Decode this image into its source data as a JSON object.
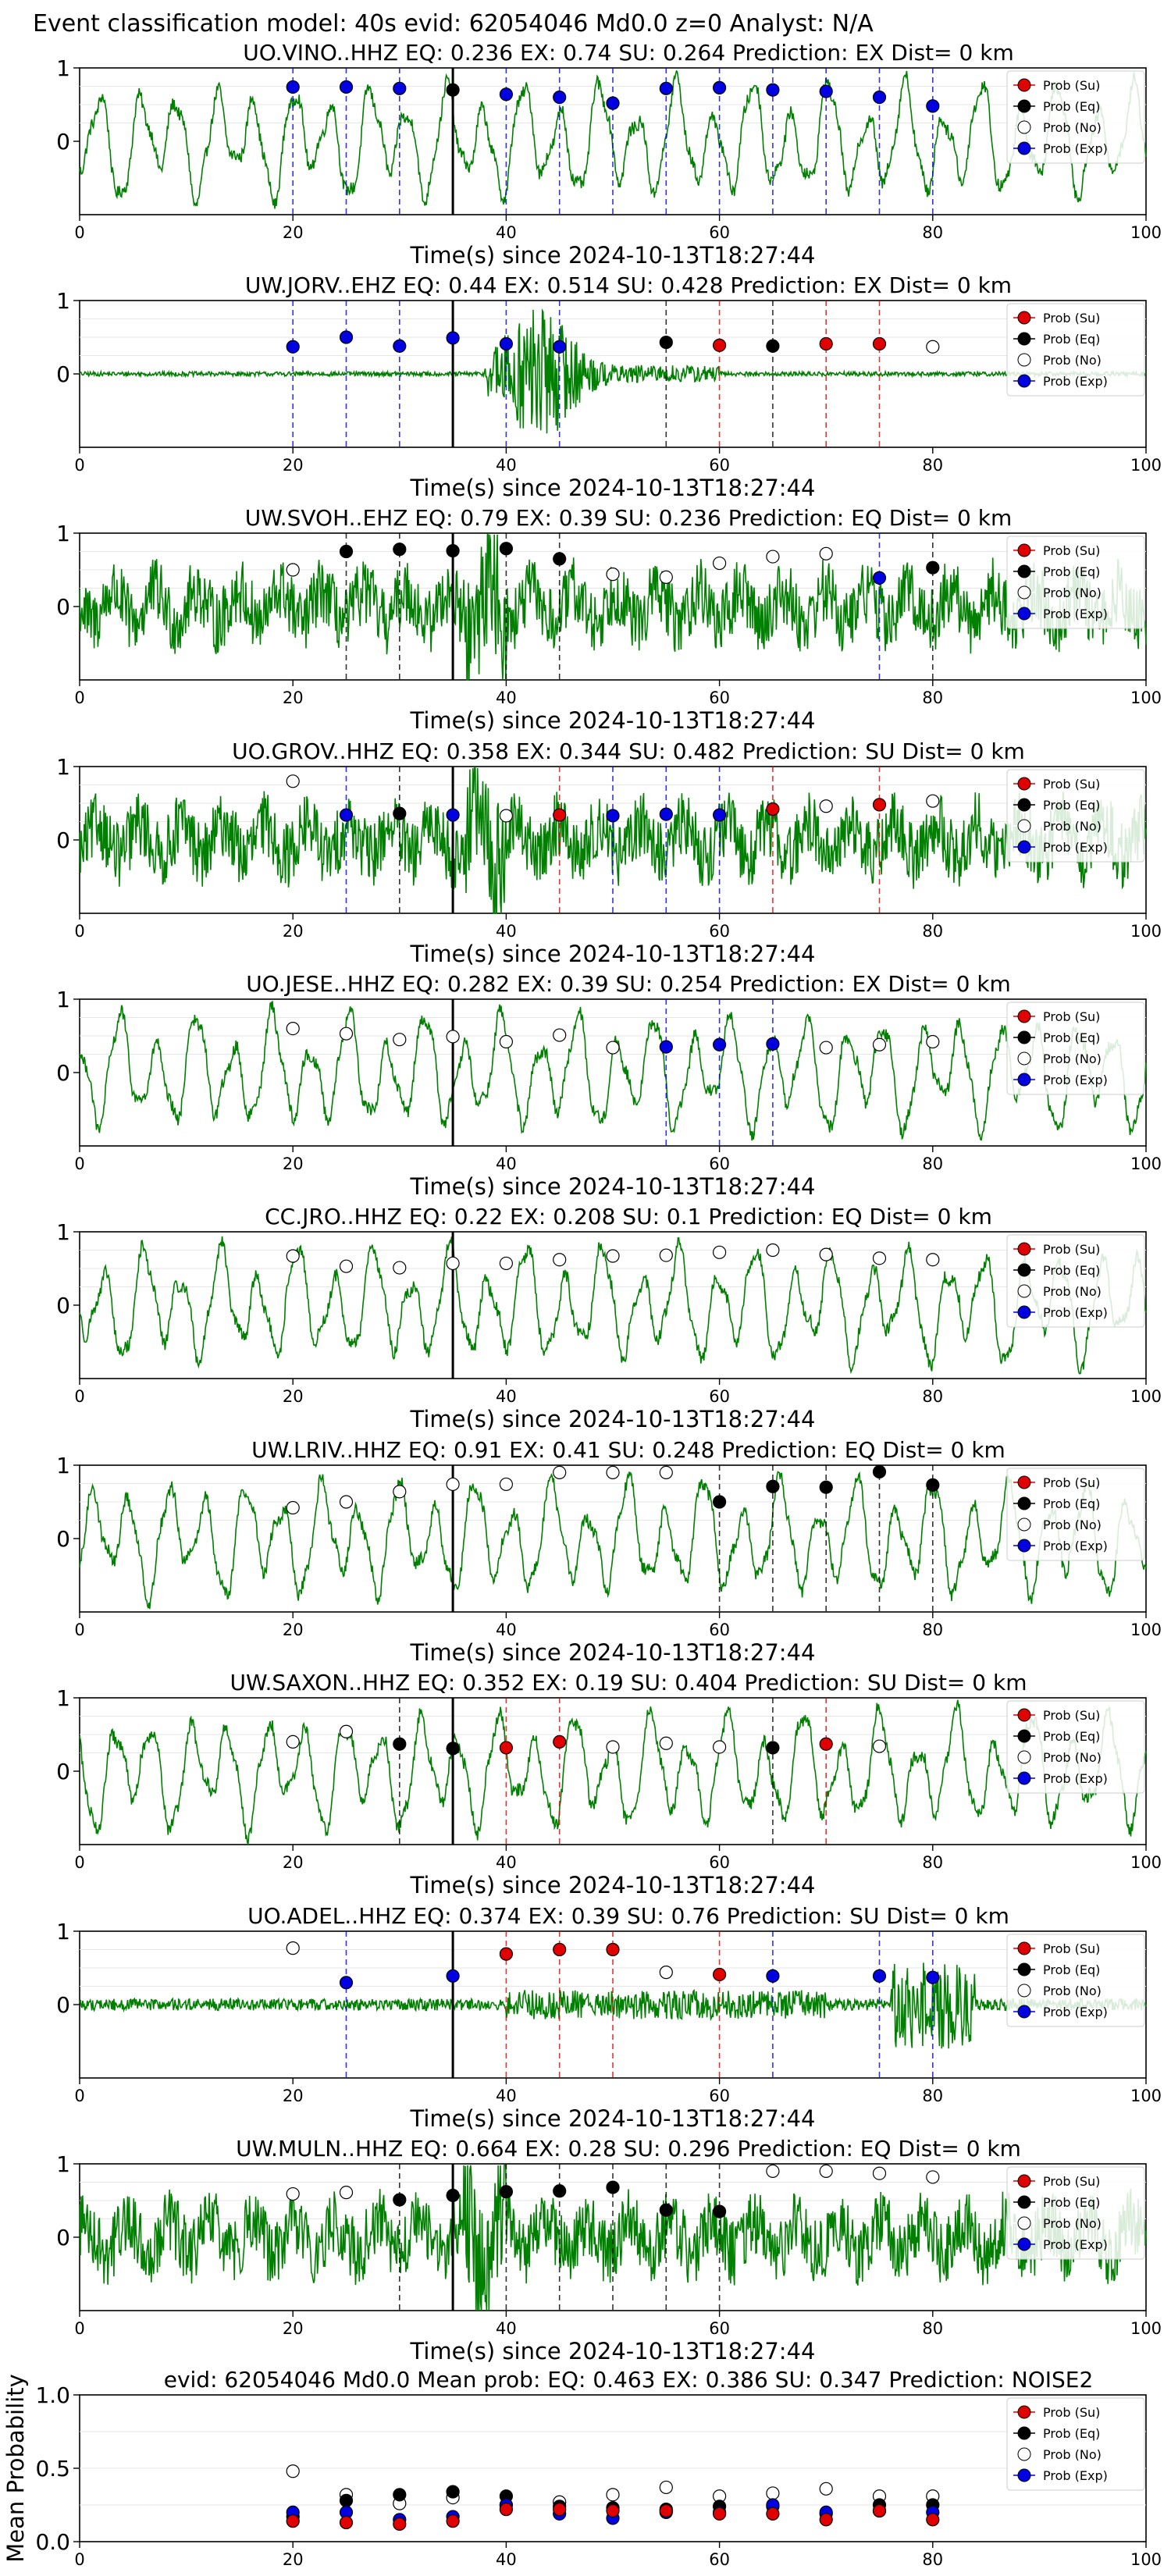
{
  "figure": {
    "suptitle": "Event classification model: 40s evid: 62054046 Md0.0 z=0 Analyst: N/A"
  },
  "legend_labels": [
    "Prob (Su)",
    "Prob (Eq)",
    "Prob (No)",
    "Prob (Exp)"
  ],
  "colors": {
    "su": "#e00000",
    "eq": "#000000",
    "no": "#ffffff",
    "exp": "#0000e0",
    "waveform": "#008000"
  },
  "chart_data": [
    {
      "type": "line",
      "title": "UO.VINO..HHZ   EQ: 0.236  EX: 0.74  SU: 0.264   Prediction: EX    Dist= 0 km",
      "xlabel": "Time(s) since 2024-10-13T18:27:44",
      "xlim": [
        0,
        100
      ],
      "ylim": [
        -1,
        1
      ],
      "xticks": [
        "0",
        "20",
        "40",
        "60",
        "80",
        "100"
      ],
      "yticks": [
        "1",
        "0"
      ],
      "onset": 35,
      "waveform": "smooth",
      "points": [
        {
          "t": 20,
          "p": 0.74,
          "cls": "exp"
        },
        {
          "t": 25,
          "p": 0.74,
          "cls": "exp"
        },
        {
          "t": 30,
          "p": 0.72,
          "cls": "exp"
        },
        {
          "t": 35,
          "p": 0.7,
          "cls": "eq"
        },
        {
          "t": 40,
          "p": 0.64,
          "cls": "exp"
        },
        {
          "t": 45,
          "p": 0.6,
          "cls": "exp"
        },
        {
          "t": 50,
          "p": 0.52,
          "cls": "exp"
        },
        {
          "t": 55,
          "p": 0.72,
          "cls": "exp"
        },
        {
          "t": 60,
          "p": 0.73,
          "cls": "exp"
        },
        {
          "t": 65,
          "p": 0.7,
          "cls": "exp"
        },
        {
          "t": 70,
          "p": 0.68,
          "cls": "exp"
        },
        {
          "t": 75,
          "p": 0.6,
          "cls": "exp"
        },
        {
          "t": 80,
          "p": 0.48,
          "cls": "exp"
        }
      ]
    },
    {
      "type": "line",
      "title": "UW.JORV..EHZ   EQ: 0.44  EX: 0.514  SU: 0.428   Prediction: EX    Dist= 0 km",
      "xlabel": "Time(s) since 2024-10-13T18:27:44",
      "xlim": [
        0,
        100
      ],
      "ylim": [
        -1,
        1
      ],
      "xticks": [
        "0",
        "20",
        "40",
        "60",
        "80",
        "100"
      ],
      "yticks": [
        "1",
        "0"
      ],
      "onset": 35,
      "waveform": "burst",
      "points": [
        {
          "t": 20,
          "p": 0.37,
          "cls": "exp"
        },
        {
          "t": 25,
          "p": 0.5,
          "cls": "exp"
        },
        {
          "t": 30,
          "p": 0.38,
          "cls": "exp"
        },
        {
          "t": 35,
          "p": 0.49,
          "cls": "exp"
        },
        {
          "t": 40,
          "p": 0.41,
          "cls": "exp"
        },
        {
          "t": 45,
          "p": 0.37,
          "cls": "exp"
        },
        {
          "t": 55,
          "p": 0.43,
          "cls": "eq"
        },
        {
          "t": 60,
          "p": 0.39,
          "cls": "su"
        },
        {
          "t": 65,
          "p": 0.38,
          "cls": "eq"
        },
        {
          "t": 70,
          "p": 0.41,
          "cls": "su"
        },
        {
          "t": 75,
          "p": 0.41,
          "cls": "su"
        },
        {
          "t": 80,
          "p": 0.37,
          "cls": "no"
        }
      ]
    },
    {
      "type": "line",
      "title": "UW.SVOH..EHZ   EQ: 0.79  EX: 0.39  SU: 0.236   Prediction: EQ    Dist= 0 km",
      "xlabel": "Time(s) since 2024-10-13T18:27:44",
      "xlim": [
        0,
        100
      ],
      "ylim": [
        -1,
        1
      ],
      "xticks": [
        "0",
        "20",
        "40",
        "60",
        "80",
        "100"
      ],
      "yticks": [
        "1",
        "0"
      ],
      "onset": 35,
      "waveform": "noisy",
      "points": [
        {
          "t": 20,
          "p": 0.5,
          "cls": "no"
        },
        {
          "t": 25,
          "p": 0.75,
          "cls": "eq"
        },
        {
          "t": 30,
          "p": 0.78,
          "cls": "eq"
        },
        {
          "t": 35,
          "p": 0.76,
          "cls": "eq"
        },
        {
          "t": 40,
          "p": 0.79,
          "cls": "eq"
        },
        {
          "t": 45,
          "p": 0.65,
          "cls": "eq"
        },
        {
          "t": 50,
          "p": 0.44,
          "cls": "no"
        },
        {
          "t": 55,
          "p": 0.4,
          "cls": "no"
        },
        {
          "t": 60,
          "p": 0.59,
          "cls": "no"
        },
        {
          "t": 65,
          "p": 0.68,
          "cls": "no"
        },
        {
          "t": 70,
          "p": 0.72,
          "cls": "no"
        },
        {
          "t": 75,
          "p": 0.39,
          "cls": "exp"
        },
        {
          "t": 80,
          "p": 0.53,
          "cls": "eq"
        }
      ]
    },
    {
      "type": "line",
      "title": "UO.GROV..HHZ   EQ: 0.358  EX: 0.344  SU: 0.482   Prediction: SU    Dist= 0 km",
      "xlabel": "Time(s) since 2024-10-13T18:27:44",
      "xlim": [
        0,
        100
      ],
      "ylim": [
        -1,
        1
      ],
      "xticks": [
        "0",
        "20",
        "40",
        "60",
        "80",
        "100"
      ],
      "yticks": [
        "1",
        "0"
      ],
      "onset": 35,
      "waveform": "noisy",
      "points": [
        {
          "t": 20,
          "p": 0.8,
          "cls": "no"
        },
        {
          "t": 25,
          "p": 0.34,
          "cls": "exp"
        },
        {
          "t": 30,
          "p": 0.36,
          "cls": "eq"
        },
        {
          "t": 35,
          "p": 0.34,
          "cls": "exp"
        },
        {
          "t": 40,
          "p": 0.33,
          "cls": "no"
        },
        {
          "t": 45,
          "p": 0.34,
          "cls": "su"
        },
        {
          "t": 50,
          "p": 0.33,
          "cls": "exp"
        },
        {
          "t": 55,
          "p": 0.35,
          "cls": "exp"
        },
        {
          "t": 60,
          "p": 0.34,
          "cls": "exp"
        },
        {
          "t": 65,
          "p": 0.42,
          "cls": "su"
        },
        {
          "t": 70,
          "p": 0.46,
          "cls": "no"
        },
        {
          "t": 75,
          "p": 0.48,
          "cls": "su"
        },
        {
          "t": 80,
          "p": 0.53,
          "cls": "no"
        }
      ]
    },
    {
      "type": "line",
      "title": "UO.JESE..HHZ   EQ: 0.282  EX: 0.39  SU: 0.254   Prediction: EX    Dist= 0 km",
      "xlabel": "Time(s) since 2024-10-13T18:27:44",
      "xlim": [
        0,
        100
      ],
      "ylim": [
        -1,
        1
      ],
      "xticks": [
        "0",
        "20",
        "40",
        "60",
        "80",
        "100"
      ],
      "yticks": [
        "1",
        "0"
      ],
      "onset": 35,
      "waveform": "smooth",
      "points": [
        {
          "t": 20,
          "p": 0.6,
          "cls": "no"
        },
        {
          "t": 25,
          "p": 0.53,
          "cls": "no"
        },
        {
          "t": 30,
          "p": 0.45,
          "cls": "no"
        },
        {
          "t": 35,
          "p": 0.49,
          "cls": "no"
        },
        {
          "t": 40,
          "p": 0.42,
          "cls": "no"
        },
        {
          "t": 45,
          "p": 0.51,
          "cls": "no"
        },
        {
          "t": 50,
          "p": 0.34,
          "cls": "no"
        },
        {
          "t": 55,
          "p": 0.35,
          "cls": "exp"
        },
        {
          "t": 60,
          "p": 0.38,
          "cls": "exp"
        },
        {
          "t": 65,
          "p": 0.39,
          "cls": "exp"
        },
        {
          "t": 70,
          "p": 0.34,
          "cls": "no"
        },
        {
          "t": 75,
          "p": 0.38,
          "cls": "no"
        },
        {
          "t": 80,
          "p": 0.42,
          "cls": "no"
        }
      ]
    },
    {
      "type": "line",
      "title": "CC.JRO..HHZ   EQ: 0.22  EX: 0.208  SU: 0.1   Prediction: EQ    Dist= 0 km",
      "xlabel": "Time(s) since 2024-10-13T18:27:44",
      "xlim": [
        0,
        100
      ],
      "ylim": [
        -1,
        1
      ],
      "xticks": [
        "0",
        "20",
        "40",
        "60",
        "80",
        "100"
      ],
      "yticks": [
        "1",
        "0"
      ],
      "onset": 35,
      "waveform": "smooth",
      "points": [
        {
          "t": 20,
          "p": 0.67,
          "cls": "no"
        },
        {
          "t": 25,
          "p": 0.53,
          "cls": "no"
        },
        {
          "t": 30,
          "p": 0.51,
          "cls": "no"
        },
        {
          "t": 35,
          "p": 0.57,
          "cls": "no"
        },
        {
          "t": 40,
          "p": 0.57,
          "cls": "no"
        },
        {
          "t": 45,
          "p": 0.62,
          "cls": "no"
        },
        {
          "t": 50,
          "p": 0.67,
          "cls": "no"
        },
        {
          "t": 55,
          "p": 0.68,
          "cls": "no"
        },
        {
          "t": 60,
          "p": 0.72,
          "cls": "no"
        },
        {
          "t": 65,
          "p": 0.75,
          "cls": "no"
        },
        {
          "t": 70,
          "p": 0.69,
          "cls": "no"
        },
        {
          "t": 75,
          "p": 0.64,
          "cls": "no"
        },
        {
          "t": 80,
          "p": 0.62,
          "cls": "no"
        }
      ]
    },
    {
      "type": "line",
      "title": "UW.LRIV..HHZ   EQ: 0.91  EX: 0.41  SU: 0.248   Prediction: EQ    Dist= 0 km",
      "xlabel": "Time(s) since 2024-10-13T18:27:44",
      "xlim": [
        0,
        100
      ],
      "ylim": [
        -1,
        1
      ],
      "xticks": [
        "0",
        "20",
        "40",
        "60",
        "80",
        "100"
      ],
      "yticks": [
        "1",
        "0"
      ],
      "onset": 35,
      "waveform": "smooth",
      "points": [
        {
          "t": 20,
          "p": 0.42,
          "cls": "no"
        },
        {
          "t": 25,
          "p": 0.5,
          "cls": "no"
        },
        {
          "t": 30,
          "p": 0.64,
          "cls": "no"
        },
        {
          "t": 35,
          "p": 0.74,
          "cls": "no"
        },
        {
          "t": 40,
          "p": 0.74,
          "cls": "no"
        },
        {
          "t": 45,
          "p": 0.9,
          "cls": "no"
        },
        {
          "t": 50,
          "p": 0.9,
          "cls": "no"
        },
        {
          "t": 55,
          "p": 0.9,
          "cls": "no"
        },
        {
          "t": 60,
          "p": 0.5,
          "cls": "eq"
        },
        {
          "t": 65,
          "p": 0.71,
          "cls": "eq"
        },
        {
          "t": 70,
          "p": 0.7,
          "cls": "eq"
        },
        {
          "t": 75,
          "p": 0.91,
          "cls": "eq"
        },
        {
          "t": 80,
          "p": 0.73,
          "cls": "eq"
        }
      ]
    },
    {
      "type": "line",
      "title": "UW.SAXON..HHZ   EQ: 0.352  EX: 0.19  SU: 0.404   Prediction: SU    Dist= 0 km",
      "xlabel": "Time(s) since 2024-10-13T18:27:44",
      "xlim": [
        0,
        100
      ],
      "ylim": [
        -1,
        1
      ],
      "xticks": [
        "0",
        "20",
        "40",
        "60",
        "80",
        "100"
      ],
      "yticks": [
        "1",
        "0"
      ],
      "onset": 35,
      "waveform": "smooth",
      "points": [
        {
          "t": 20,
          "p": 0.4,
          "cls": "no"
        },
        {
          "t": 25,
          "p": 0.54,
          "cls": "no"
        },
        {
          "t": 30,
          "p": 0.37,
          "cls": "eq"
        },
        {
          "t": 35,
          "p": 0.31,
          "cls": "eq"
        },
        {
          "t": 40,
          "p": 0.32,
          "cls": "su"
        },
        {
          "t": 45,
          "p": 0.4,
          "cls": "su"
        },
        {
          "t": 50,
          "p": 0.33,
          "cls": "no"
        },
        {
          "t": 55,
          "p": 0.38,
          "cls": "no"
        },
        {
          "t": 60,
          "p": 0.33,
          "cls": "no"
        },
        {
          "t": 65,
          "p": 0.32,
          "cls": "eq"
        },
        {
          "t": 70,
          "p": 0.37,
          "cls": "su"
        },
        {
          "t": 75,
          "p": 0.34,
          "cls": "no"
        }
      ]
    },
    {
      "type": "line",
      "title": "UO.ADEL..HHZ   EQ: 0.374  EX: 0.39  SU: 0.76   Prediction: SU    Dist= 0 km",
      "xlabel": "Time(s) since 2024-10-13T18:27:44",
      "xlim": [
        0,
        100
      ],
      "ylim": [
        -1,
        1
      ],
      "xticks": [
        "0",
        "20",
        "40",
        "60",
        "80",
        "100"
      ],
      "yticks": [
        "1",
        "0"
      ],
      "onset": 35,
      "waveform": "quiet",
      "points": [
        {
          "t": 20,
          "p": 0.77,
          "cls": "no"
        },
        {
          "t": 25,
          "p": 0.3,
          "cls": "exp"
        },
        {
          "t": 35,
          "p": 0.39,
          "cls": "exp"
        },
        {
          "t": 40,
          "p": 0.69,
          "cls": "su"
        },
        {
          "t": 45,
          "p": 0.75,
          "cls": "su"
        },
        {
          "t": 50,
          "p": 0.75,
          "cls": "su"
        },
        {
          "t": 55,
          "p": 0.44,
          "cls": "no"
        },
        {
          "t": 60,
          "p": 0.41,
          "cls": "su"
        },
        {
          "t": 65,
          "p": 0.39,
          "cls": "exp"
        },
        {
          "t": 75,
          "p": 0.39,
          "cls": "exp"
        },
        {
          "t": 80,
          "p": 0.37,
          "cls": "exp"
        }
      ]
    },
    {
      "type": "line",
      "title": "UW.MULN..HHZ   EQ: 0.664  EX: 0.28  SU: 0.296   Prediction: EQ    Dist= 0 km",
      "xlabel": "Time(s) since 2024-10-13T18:27:44",
      "xlim": [
        0,
        100
      ],
      "ylim": [
        -1,
        1
      ],
      "xticks": [
        "0",
        "20",
        "40",
        "60",
        "80",
        "100"
      ],
      "yticks": [
        "1",
        "0"
      ],
      "onset": 35,
      "waveform": "noisy",
      "points": [
        {
          "t": 20,
          "p": 0.59,
          "cls": "no"
        },
        {
          "t": 25,
          "p": 0.61,
          "cls": "no"
        },
        {
          "t": 30,
          "p": 0.51,
          "cls": "eq"
        },
        {
          "t": 35,
          "p": 0.57,
          "cls": "eq"
        },
        {
          "t": 40,
          "p": 0.62,
          "cls": "eq"
        },
        {
          "t": 45,
          "p": 0.63,
          "cls": "eq"
        },
        {
          "t": 50,
          "p": 0.68,
          "cls": "eq"
        },
        {
          "t": 55,
          "p": 0.37,
          "cls": "eq"
        },
        {
          "t": 60,
          "p": 0.35,
          "cls": "eq"
        },
        {
          "t": 65,
          "p": 0.9,
          "cls": "no"
        },
        {
          "t": 70,
          "p": 0.9,
          "cls": "no"
        },
        {
          "t": 75,
          "p": 0.87,
          "cls": "no"
        },
        {
          "t": 80,
          "p": 0.82,
          "cls": "no"
        }
      ]
    },
    {
      "type": "scatter",
      "title": "evid: 62054046  Md0.0   Mean prob:   EQ: 0.463  EX: 0.386  SU: 0.347   Prediction: NOISE2",
      "ylabel": "Mean Probability",
      "xlim": [
        0,
        100
      ],
      "ylim": [
        0,
        1
      ],
      "xticks": [
        "0",
        "20",
        "40",
        "60",
        "80",
        "100"
      ],
      "yticks": [
        "1.0",
        "0.5",
        "0.0"
      ],
      "x": [
        20,
        25,
        30,
        35,
        40,
        45,
        50,
        55,
        60,
        65,
        70,
        75,
        80
      ],
      "series": [
        {
          "key": "no",
          "values": [
            0.48,
            0.32,
            0.26,
            0.3,
            0.25,
            0.27,
            0.32,
            0.37,
            0.31,
            0.33,
            0.36,
            0.31,
            0.31
          ]
        },
        {
          "key": "eq",
          "values": [
            0.17,
            0.28,
            0.32,
            0.34,
            0.31,
            0.24,
            0.23,
            0.22,
            0.24,
            0.24,
            0.19,
            0.25,
            0.25
          ]
        },
        {
          "key": "exp",
          "values": [
            0.2,
            0.2,
            0.15,
            0.17,
            0.25,
            0.19,
            0.16,
            0.2,
            0.2,
            0.25,
            0.2,
            0.21,
            0.2
          ]
        },
        {
          "key": "su",
          "values": [
            0.14,
            0.13,
            0.12,
            0.14,
            0.22,
            0.22,
            0.21,
            0.21,
            0.19,
            0.19,
            0.15,
            0.21,
            0.15
          ]
        }
      ]
    }
  ]
}
